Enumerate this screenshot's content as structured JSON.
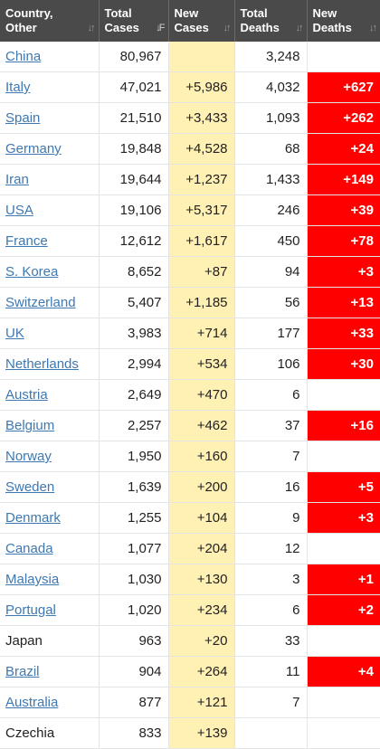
{
  "headers": [
    {
      "line1": "Country,",
      "line2": "Other",
      "sort": "updown"
    },
    {
      "line1": "Total",
      "line2": "Cases",
      "sort": "down"
    },
    {
      "line1": "New",
      "line2": "Cases",
      "sort": "updown"
    },
    {
      "line1": "Total",
      "line2": "Deaths",
      "sort": "updown"
    },
    {
      "line1": "New",
      "line2": "Deaths",
      "sort": "updown"
    }
  ],
  "rows": [
    {
      "country": "China",
      "link": true,
      "total_cases": "80,967",
      "new_cases": "",
      "total_deaths": "3,248",
      "new_deaths": ""
    },
    {
      "country": "Italy",
      "link": true,
      "total_cases": "47,021",
      "new_cases": "+5,986",
      "total_deaths": "4,032",
      "new_deaths": "+627"
    },
    {
      "country": "Spain",
      "link": true,
      "total_cases": "21,510",
      "new_cases": "+3,433",
      "total_deaths": "1,093",
      "new_deaths": "+262"
    },
    {
      "country": "Germany",
      "link": true,
      "total_cases": "19,848",
      "new_cases": "+4,528",
      "total_deaths": "68",
      "new_deaths": "+24"
    },
    {
      "country": "Iran",
      "link": true,
      "total_cases": "19,644",
      "new_cases": "+1,237",
      "total_deaths": "1,433",
      "new_deaths": "+149"
    },
    {
      "country": "USA",
      "link": true,
      "total_cases": "19,106",
      "new_cases": "+5,317",
      "total_deaths": "246",
      "new_deaths": "+39"
    },
    {
      "country": "France",
      "link": true,
      "total_cases": "12,612",
      "new_cases": "+1,617",
      "total_deaths": "450",
      "new_deaths": "+78"
    },
    {
      "country": "S. Korea",
      "link": true,
      "total_cases": "8,652",
      "new_cases": "+87",
      "total_deaths": "94",
      "new_deaths": "+3"
    },
    {
      "country": "Switzerland",
      "link": true,
      "total_cases": "5,407",
      "new_cases": "+1,185",
      "total_deaths": "56",
      "new_deaths": "+13"
    },
    {
      "country": "UK",
      "link": true,
      "total_cases": "3,983",
      "new_cases": "+714",
      "total_deaths": "177",
      "new_deaths": "+33"
    },
    {
      "country": "Netherlands",
      "link": true,
      "total_cases": "2,994",
      "new_cases": "+534",
      "total_deaths": "106",
      "new_deaths": "+30"
    },
    {
      "country": "Austria",
      "link": true,
      "total_cases": "2,649",
      "new_cases": "+470",
      "total_deaths": "6",
      "new_deaths": ""
    },
    {
      "country": "Belgium",
      "link": true,
      "total_cases": "2,257",
      "new_cases": "+462",
      "total_deaths": "37",
      "new_deaths": "+16"
    },
    {
      "country": "Norway",
      "link": true,
      "total_cases": "1,950",
      "new_cases": "+160",
      "total_deaths": "7",
      "new_deaths": ""
    },
    {
      "country": "Sweden",
      "link": true,
      "total_cases": "1,639",
      "new_cases": "+200",
      "total_deaths": "16",
      "new_deaths": "+5"
    },
    {
      "country": "Denmark",
      "link": true,
      "total_cases": "1,255",
      "new_cases": "+104",
      "total_deaths": "9",
      "new_deaths": "+3"
    },
    {
      "country": "Canada",
      "link": true,
      "total_cases": "1,077",
      "new_cases": "+204",
      "total_deaths": "12",
      "new_deaths": ""
    },
    {
      "country": "Malaysia",
      "link": true,
      "total_cases": "1,030",
      "new_cases": "+130",
      "total_deaths": "3",
      "new_deaths": "+1"
    },
    {
      "country": "Portugal",
      "link": true,
      "total_cases": "1,020",
      "new_cases": "+234",
      "total_deaths": "6",
      "new_deaths": "+2"
    },
    {
      "country": "Japan",
      "link": false,
      "total_cases": "963",
      "new_cases": "+20",
      "total_deaths": "33",
      "new_deaths": ""
    },
    {
      "country": "Brazil",
      "link": true,
      "total_cases": "904",
      "new_cases": "+264",
      "total_deaths": "11",
      "new_deaths": "+4"
    },
    {
      "country": "Australia",
      "link": true,
      "total_cases": "877",
      "new_cases": "+121",
      "total_deaths": "7",
      "new_deaths": ""
    },
    {
      "country": "Czechia",
      "link": false,
      "total_cases": "833",
      "new_cases": "+139",
      "total_deaths": "",
      "new_deaths": ""
    }
  ],
  "colors": {
    "header_bg": "#4a4a4a",
    "link": "#3e78b2",
    "new_cases_bg": "#fff0b3",
    "new_deaths_bg": "#ff0000"
  },
  "icons": {
    "sort_updown": "sort-updown-icon",
    "sort_down": "sort-down-icon"
  }
}
